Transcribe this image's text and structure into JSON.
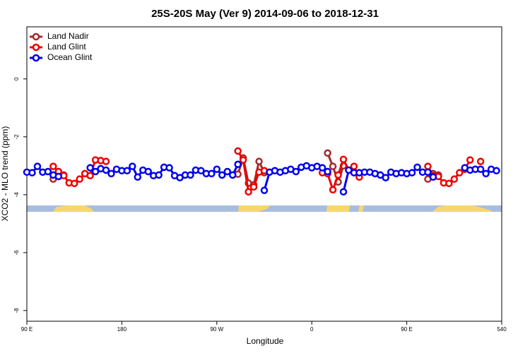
{
  "chart_data": {
    "type": "line",
    "title": "25S-20S May (Ver 9)   2014-09-06 to 2018-12-31",
    "xlabel": "Longitude",
    "ylabel": "XCO2 - MLO trend (ppm)",
    "x": [
      90,
      95,
      100,
      105,
      110,
      115,
      120,
      125,
      130,
      135,
      140,
      145,
      150,
      155,
      160,
      165,
      170,
      175,
      180,
      185,
      190,
      195,
      200,
      205,
      210,
      215,
      220,
      225,
      230,
      235,
      240,
      245,
      250,
      255,
      260,
      265,
      270,
      275,
      280,
      285,
      290,
      295,
      300,
      305,
      310,
      315,
      320,
      325,
      330,
      335,
      340,
      345,
      350,
      355,
      360,
      365,
      370,
      375,
      380,
      385,
      390,
      395,
      400,
      405,
      410,
      415,
      420,
      425,
      430,
      435,
      440,
      445,
      450,
      455,
      460,
      465,
      470,
      475,
      480,
      485,
      490,
      495,
      500,
      505,
      510,
      515,
      520,
      525,
      530,
      535,
      540
    ],
    "xlim": [
      90,
      540
    ],
    "xticks": [
      {
        "value": 90,
        "label": "90 E"
      },
      180,
      {
        "value": 270,
        "label": "90 W"
      },
      {
        "value": 360,
        "label": "0"
      },
      {
        "value": 450,
        "label": "90 E"
      },
      540
    ],
    "ylim": [
      -8.37,
      1.8
    ],
    "yticks": [
      0,
      -2,
      -4,
      -6,
      -8
    ],
    "legend": "top-left",
    "series": [
      {
        "name": "Land Nadir",
        "color": "#a52a2a",
        "values": [
          null,
          null,
          null,
          null,
          null,
          -3.46,
          -3.37,
          -3.32,
          null,
          null,
          null,
          null,
          null,
          null,
          null,
          null,
          null,
          null,
          null,
          null,
          null,
          null,
          null,
          null,
          null,
          null,
          null,
          null,
          null,
          null,
          null,
          null,
          null,
          null,
          null,
          null,
          null,
          null,
          null,
          null,
          -3.29,
          -2.73,
          -3.6,
          -3.66,
          -2.85,
          -3.24,
          null,
          null,
          null,
          null,
          null,
          null,
          null,
          null,
          null,
          null,
          null,
          -2.56,
          -3.02,
          -3.56,
          -3.0,
          null,
          null,
          null,
          null,
          null,
          null,
          null,
          null,
          null,
          null,
          null,
          null,
          null,
          null,
          null,
          -3.46,
          -3.27,
          -3.32,
          null,
          null,
          null,
          null,
          null,
          null,
          null,
          null,
          null,
          null,
          null,
          null
        ]
      },
      {
        "name": "Land Glint",
        "color": "#ee0000",
        "values": [
          null,
          null,
          null,
          null,
          null,
          -3.02,
          -3.2,
          -3.34,
          -3.59,
          -3.61,
          -3.46,
          -3.27,
          -3.34,
          -2.8,
          -2.82,
          -2.85,
          null,
          null,
          null,
          null,
          null,
          null,
          null,
          null,
          null,
          null,
          null,
          null,
          null,
          null,
          null,
          null,
          null,
          null,
          null,
          null,
          null,
          null,
          null,
          null,
          -2.49,
          -2.8,
          -3.9,
          -3.73,
          -3.22,
          -3.17,
          null,
          null,
          null,
          null,
          null,
          null,
          null,
          null,
          null,
          null,
          -3.24,
          -3.27,
          -3.83,
          -3.32,
          -2.78,
          -3.15,
          -3.02,
          -3.39,
          null,
          null,
          null,
          null,
          null,
          null,
          null,
          null,
          null,
          null,
          null,
          null,
          -3.02,
          -3.34,
          -3.37,
          -3.59,
          -3.61,
          -3.46,
          -3.24,
          -3.12,
          -2.8,
          null,
          -2.85,
          null,
          null,
          null,
          null
        ]
      },
      {
        "name": "Ocean Glint",
        "color": "#0000ee",
        "values": [
          -3.22,
          -3.24,
          -3.02,
          -3.22,
          -3.2,
          -3.32,
          -3.37,
          null,
          null,
          null,
          null,
          null,
          -3.07,
          -3.2,
          -3.1,
          -3.15,
          -3.27,
          -3.12,
          -3.17,
          -3.17,
          -3.02,
          -3.39,
          -3.15,
          -3.2,
          -3.34,
          -3.32,
          -3.05,
          -3.07,
          -3.34,
          -3.41,
          -3.32,
          -3.32,
          -3.15,
          -3.17,
          -3.27,
          -3.27,
          -3.12,
          -3.32,
          -3.2,
          -3.32,
          -2.95,
          null,
          null,
          null,
          null,
          -3.85,
          -3.22,
          -3.17,
          -3.22,
          -3.17,
          -3.12,
          -3.2,
          -3.05,
          -3.0,
          -3.07,
          -3.02,
          -3.07,
          -3.2,
          null,
          null,
          -3.9,
          -3.15,
          -3.24,
          -3.24,
          -3.22,
          -3.22,
          -3.27,
          -3.32,
          -3.41,
          -3.22,
          -3.27,
          -3.24,
          -3.27,
          -3.24,
          -3.05,
          -3.22,
          -3.22,
          -3.39,
          null,
          null,
          null,
          null,
          null,
          -3.07,
          -3.15,
          -3.12,
          -3.12,
          -3.27,
          -3.12,
          -3.17,
          null
        ]
      }
    ]
  }
}
